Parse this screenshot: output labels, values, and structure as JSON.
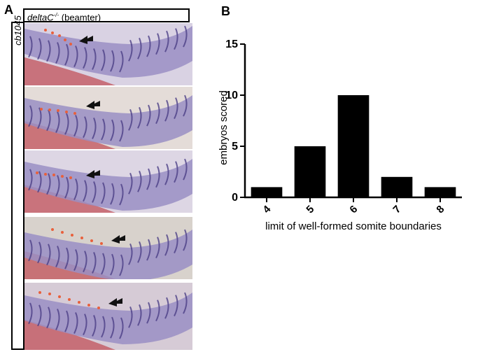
{
  "panel_a": {
    "letter": "A",
    "header_label": "deltaC",
    "header_superscript": "-/-",
    "header_suffix": "(beamter)",
    "side_label": "cb1045"
  },
  "panel_b": {
    "letter": "B"
  },
  "chart_data": {
    "type": "bar",
    "title": "",
    "xlabel": "limit of well-formed somite boundaries",
    "ylabel": "embryos scored",
    "categories": [
      "4",
      "5",
      "6",
      "7",
      "8"
    ],
    "values": [
      1,
      5,
      10,
      2,
      1
    ],
    "ylim": [
      0,
      15
    ],
    "yticks": [
      0,
      5,
      10,
      15
    ],
    "bar_color": "#000000",
    "grid": false,
    "legend": "none"
  },
  "colors": {
    "tissue_purple": "#9a8fc4",
    "stripe_purple": "#4b3f86",
    "yolk_red": "#c2525a",
    "marker_orange": "#e8603c",
    "arrow_black": "#111111"
  }
}
